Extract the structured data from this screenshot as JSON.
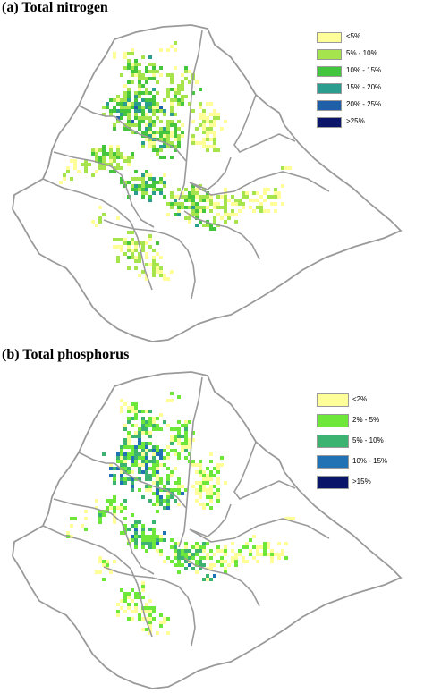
{
  "panels": [
    {
      "title": "(a) Total nitrogen",
      "legend": [
        {
          "label": "<5%",
          "color": "#ffff99"
        },
        {
          "label": "5% - 10%",
          "color": "#a6e44d"
        },
        {
          "label": "10% - 15%",
          "color": "#43c53d"
        },
        {
          "label": "15% - 20%",
          "color": "#2a9d8f"
        },
        {
          "label": "20% - 25%",
          "color": "#1f5ea8"
        },
        {
          "label": ">25%",
          "color": "#0a1468"
        }
      ]
    },
    {
      "title": "(b) Total phosphorus",
      "legend": [
        {
          "label": "<2%",
          "color": "#ffff99"
        },
        {
          "label": "2% - 5%",
          "color": "#6de83a"
        },
        {
          "label": "5% - 10%",
          "color": "#3cb371"
        },
        {
          "label": "10% - 15%",
          "color": "#2171b5"
        },
        {
          "label": ">15%",
          "color": "#0a1468"
        }
      ]
    }
  ],
  "colors": {
    "boundary": "#9a9a9a",
    "background": "#ffffff"
  }
}
